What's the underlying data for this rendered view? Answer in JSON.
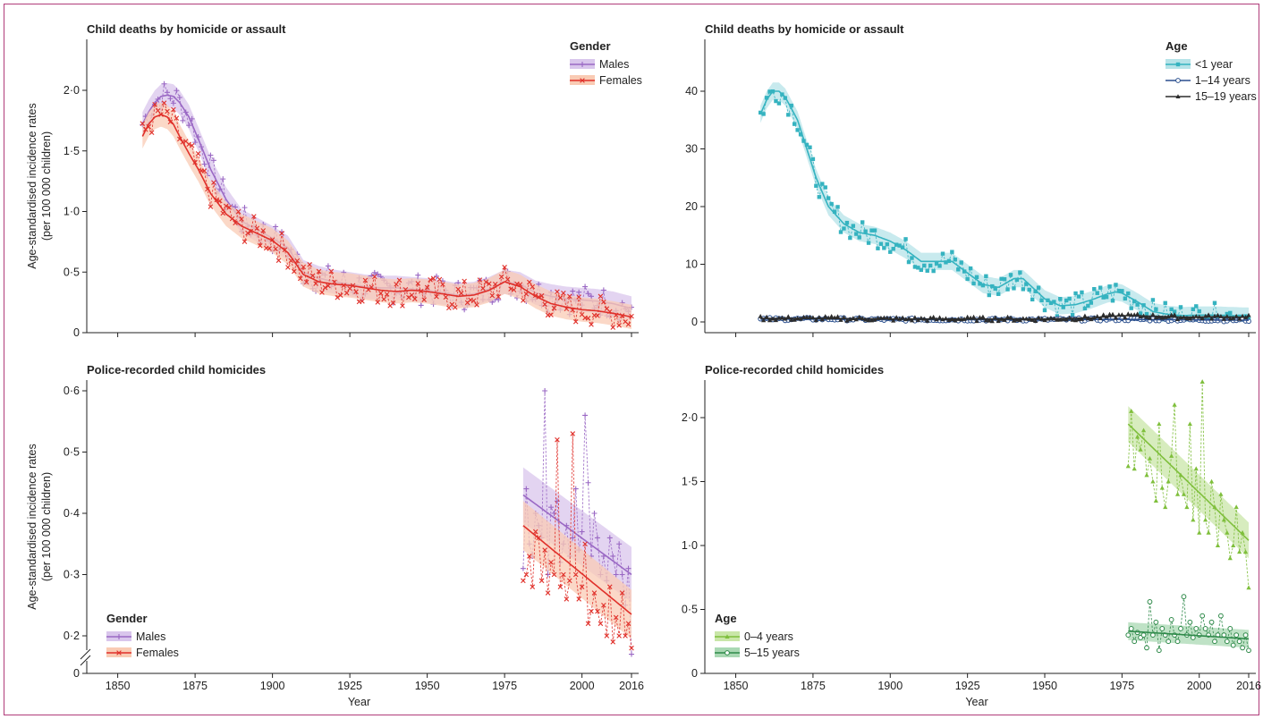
{
  "colors": {
    "males": "#9a68c4",
    "males_band": "#d9c6ec",
    "females": "#e0302a",
    "females_band": "#f9cbb4",
    "under1": "#35b3c0",
    "under1_band": "#b6e3e8",
    "age1_14": "#2a4f8e",
    "age15_19": "#2c2c2c",
    "age0_4": "#7fbf3c",
    "age0_4_band": "#c9e6a8",
    "age5_15": "#2f8a4a",
    "age5_15_band": "#a9d8b3",
    "frame": "#b03c7a"
  },
  "chart_data": [
    {
      "id": "tl",
      "type": "line",
      "title": "Child deaths by homicide or assault",
      "xlabel": "",
      "ylabel": "Age-standardised incidence rates (per 100 000 children)",
      "xlim": [
        1840,
        2016
      ],
      "ylim": [
        0,
        2.35
      ],
      "xticks": [
        1850,
        1875,
        1900,
        1925,
        1950,
        1975,
        2000,
        2016
      ],
      "yticks": [
        0,
        0.5,
        1.0,
        1.5,
        2.0
      ],
      "ytick_labels": [
        "0",
        "0·5",
        "1·0",
        "1·5",
        "2·0"
      ],
      "xtick_labels_shown": false,
      "legend": {
        "title": "Gender",
        "position": "top-right",
        "entries": [
          "Males",
          "Females"
        ]
      },
      "series": [
        {
          "name": "Males",
          "key": "males",
          "marker": "plus",
          "band": true,
          "x": [
            1858,
            1860,
            1862,
            1864,
            1866,
            1868,
            1870,
            1873,
            1876,
            1880,
            1885,
            1890,
            1895,
            1900,
            1905,
            1910,
            1915,
            1920,
            1925,
            1930,
            1935,
            1940,
            1945,
            1950,
            1955,
            1960,
            1965,
            1970,
            1975,
            1980,
            1985,
            1990,
            1995,
            2000,
            2005,
            2010,
            2016
          ],
          "y": [
            1.72,
            1.82,
            1.9,
            1.95,
            1.96,
            1.95,
            1.9,
            1.78,
            1.6,
            1.35,
            1.1,
            0.92,
            0.85,
            0.78,
            0.7,
            0.5,
            0.45,
            0.42,
            0.4,
            0.38,
            0.37,
            0.37,
            0.36,
            0.35,
            0.33,
            0.31,
            0.32,
            0.36,
            0.42,
            0.4,
            0.33,
            0.3,
            0.28,
            0.27,
            0.26,
            0.24,
            0.2
          ],
          "spread": 0.1
        },
        {
          "name": "Females",
          "key": "females",
          "marker": "x",
          "band": true,
          "x": [
            1858,
            1860,
            1862,
            1864,
            1866,
            1868,
            1870,
            1873,
            1876,
            1880,
            1885,
            1890,
            1895,
            1900,
            1905,
            1910,
            1915,
            1920,
            1925,
            1930,
            1935,
            1940,
            1945,
            1950,
            1955,
            1960,
            1965,
            1970,
            1975,
            1980,
            1985,
            1990,
            1995,
            2000,
            2005,
            2010,
            2016
          ],
          "y": [
            1.62,
            1.72,
            1.78,
            1.8,
            1.78,
            1.72,
            1.62,
            1.48,
            1.35,
            1.15,
            0.98,
            0.88,
            0.82,
            0.76,
            0.66,
            0.48,
            0.42,
            0.4,
            0.39,
            0.37,
            0.35,
            0.34,
            0.35,
            0.34,
            0.32,
            0.3,
            0.31,
            0.35,
            0.42,
            0.38,
            0.3,
            0.24,
            0.21,
            0.19,
            0.18,
            0.16,
            0.13
          ],
          "spread": 0.1
        }
      ]
    },
    {
      "id": "tr",
      "type": "line",
      "title": "Child deaths by homicide or assault",
      "xlabel": "",
      "ylabel": "",
      "xlim": [
        1840,
        2016
      ],
      "ylim": [
        0,
        47
      ],
      "xticks": [
        1850,
        1875,
        1900,
        1925,
        1950,
        1975,
        2000,
        2016
      ],
      "yticks": [
        0,
        10,
        20,
        30,
        40
      ],
      "ytick_labels": [
        "0",
        "10",
        "20",
        "30",
        "40"
      ],
      "xtick_labels_shown": false,
      "legend": {
        "title": "Age",
        "position": "top-right",
        "entries": [
          "<1 year",
          "1–14 years",
          "15–19 years"
        ]
      },
      "series": [
        {
          "name": "<1 year",
          "key": "under1",
          "marker": "square",
          "band": true,
          "x": [
            1858,
            1860,
            1862,
            1864,
            1866,
            1868,
            1870,
            1873,
            1876,
            1880,
            1885,
            1890,
            1895,
            1900,
            1905,
            1910,
            1915,
            1920,
            1925,
            1930,
            1935,
            1940,
            1943,
            1945,
            1950,
            1955,
            1960,
            1965,
            1970,
            1973,
            1975,
            1980,
            1985,
            1990,
            1995,
            2000,
            2005,
            2010,
            2016
          ],
          "y": [
            36,
            38.5,
            40,
            40,
            39,
            37,
            35,
            30,
            25,
            20,
            17,
            15.5,
            15,
            14,
            12.5,
            10.5,
            10.5,
            10.5,
            8.5,
            6.5,
            6,
            7.5,
            7.5,
            6.5,
            4,
            2.8,
            3,
            3.8,
            4.8,
            5.2,
            5,
            3.5,
            1.8,
            1.3,
            1.1,
            1.2,
            1.2,
            1.1,
            1.0
          ],
          "spread": 1.5
        },
        {
          "name": "1–14 years",
          "key": "age1_14",
          "marker": "circle",
          "band": false,
          "x": [
            1858,
            1880,
            1900,
            1925,
            1950,
            1975,
            2000,
            2016
          ],
          "y": [
            0.5,
            0.5,
            0.4,
            0.4,
            0.4,
            0.45,
            0.35,
            0.3
          ],
          "spread": 0.2
        },
        {
          "name": "15–19 years",
          "key": "age15_19",
          "marker": "triangle",
          "band": false,
          "x": [
            1858,
            1880,
            1900,
            1925,
            1950,
            1965,
            1975,
            1985,
            1995,
            2005,
            2016
          ],
          "y": [
            0.6,
            0.6,
            0.5,
            0.5,
            0.5,
            0.7,
            1.1,
            1.0,
            0.8,
            0.9,
            0.8
          ],
          "spread": 0.3
        }
      ]
    },
    {
      "id": "bl",
      "type": "line",
      "title": "Police-recorded child homicides",
      "xlabel": "Year",
      "ylabel": "Age-standardised incidence rates (per 100 000 children)",
      "xlim": [
        1840,
        2016
      ],
      "ylim": [
        0.16,
        0.6
      ],
      "ylim_note": "axis break between 0 and 0·2",
      "xticks": [
        1850,
        1875,
        1900,
        1925,
        1950,
        1975,
        2000,
        2016
      ],
      "xtick_labels": [
        "1850",
        "1875",
        "1900",
        "1925",
        "1950",
        "1975",
        "2000",
        "2016"
      ],
      "yticks": [
        0.2,
        0.3,
        0.4,
        0.5,
        0.6
      ],
      "ytick_labels": [
        "0·2",
        "0·3",
        "0·4",
        "0·5",
        "0·6"
      ],
      "zero_label": "0",
      "xtick_labels_shown": true,
      "legend": {
        "title": "Gender",
        "position": "bottom-left",
        "entries": [
          "Males",
          "Females"
        ]
      },
      "series": [
        {
          "name": "Males",
          "key": "males",
          "marker": "plus",
          "band": true,
          "x": [
            1981,
            2016
          ],
          "y": [
            0.43,
            0.3
          ],
          "spread": 0.045,
          "points_x": [
            1981,
            1982,
            1983,
            1984,
            1985,
            1986,
            1987,
            1988,
            1989,
            1990,
            1991,
            1992,
            1993,
            1994,
            1995,
            1996,
            1997,
            1998,
            1999,
            2000,
            2001,
            2002,
            2003,
            2004,
            2005,
            2006,
            2007,
            2008,
            2009,
            2010,
            2011,
            2012,
            2013,
            2014,
            2015,
            2016
          ],
          "points_y": [
            0.31,
            0.44,
            0.35,
            0.33,
            0.4,
            0.38,
            0.36,
            0.6,
            0.3,
            0.41,
            0.4,
            0.42,
            0.32,
            0.35,
            0.38,
            0.33,
            0.36,
            0.44,
            0.34,
            0.37,
            0.56,
            0.45,
            0.33,
            0.4,
            0.36,
            0.3,
            0.33,
            0.29,
            0.36,
            0.33,
            0.3,
            0.35,
            0.3,
            0.25,
            0.31,
            0.17
          ]
        },
        {
          "name": "Females",
          "key": "females",
          "marker": "x",
          "band": true,
          "x": [
            1981,
            2016
          ],
          "y": [
            0.38,
            0.235
          ],
          "spread": 0.04,
          "points_x": [
            1981,
            1982,
            1983,
            1984,
            1985,
            1986,
            1987,
            1988,
            1989,
            1990,
            1991,
            1992,
            1993,
            1994,
            1995,
            1996,
            1997,
            1998,
            1999,
            2000,
            2001,
            2002,
            2003,
            2004,
            2005,
            2006,
            2007,
            2008,
            2009,
            2010,
            2011,
            2012,
            2013,
            2014,
            2015,
            2016
          ],
          "points_y": [
            0.29,
            0.3,
            0.33,
            0.28,
            0.37,
            0.36,
            0.29,
            0.34,
            0.27,
            0.32,
            0.3,
            0.52,
            0.28,
            0.3,
            0.26,
            0.29,
            0.53,
            0.3,
            0.26,
            0.28,
            0.35,
            0.22,
            0.24,
            0.27,
            0.24,
            0.22,
            0.25,
            0.2,
            0.28,
            0.19,
            0.23,
            0.2,
            0.27,
            0.2,
            0.22,
            0.18
          ]
        }
      ]
    },
    {
      "id": "br",
      "type": "line",
      "title": "Police-recorded child homicides",
      "xlabel": "Year",
      "ylabel": "",
      "xlim": [
        1840,
        2016
      ],
      "ylim": [
        0,
        2.3
      ],
      "xticks": [
        1850,
        1875,
        1900,
        1925,
        1950,
        1975,
        2000,
        2016
      ],
      "xtick_labels": [
        "1850",
        "1875",
        "1900",
        "1925",
        "1950",
        "1975",
        "2000",
        "2016"
      ],
      "yticks": [
        0,
        0.5,
        1.0,
        1.5,
        2.0
      ],
      "ytick_labels": [
        "0",
        "0·5",
        "1·0",
        "1·5",
        "2·0"
      ],
      "xtick_labels_shown": true,
      "legend": {
        "title": "Age",
        "position": "bottom-left",
        "entries": [
          "0–4 years",
          "5–15 years"
        ]
      },
      "series": [
        {
          "name": "0–4 years",
          "key": "age0_4",
          "marker": "triangle",
          "band": true,
          "x": [
            1977,
            2016
          ],
          "y": [
            1.95,
            1.04
          ],
          "spread": 0.14,
          "points_x": [
            1977,
            1978,
            1979,
            1980,
            1981,
            1982,
            1983,
            1984,
            1985,
            1986,
            1987,
            1988,
            1989,
            1990,
            1991,
            1992,
            1993,
            1994,
            1995,
            1996,
            1997,
            1998,
            1999,
            2000,
            2001,
            2002,
            2003,
            2004,
            2005,
            2006,
            2007,
            2008,
            2009,
            2010,
            2011,
            2012,
            2013,
            2014,
            2015,
            2016
          ],
          "points_y": [
            1.62,
            2.05,
            1.6,
            1.85,
            1.75,
            1.9,
            1.55,
            1.68,
            1.5,
            1.35,
            1.95,
            1.45,
            1.3,
            1.5,
            1.7,
            2.1,
            1.4,
            1.55,
            1.4,
            1.3,
            1.95,
            1.2,
            1.6,
            1.1,
            2.28,
            1.2,
            1.1,
            1.5,
            1.3,
            1.0,
            1.4,
            1.2,
            1.1,
            0.9,
            1.0,
            1.3,
            0.95,
            1.1,
            0.95,
            0.67
          ]
        },
        {
          "name": "5–15 years",
          "key": "age5_15",
          "marker": "circle",
          "band": true,
          "x": [
            1977,
            2016
          ],
          "y": [
            0.33,
            0.27
          ],
          "spread": 0.07,
          "points_x": [
            1977,
            1978,
            1979,
            1980,
            1981,
            1982,
            1983,
            1984,
            1985,
            1986,
            1987,
            1988,
            1989,
            1990,
            1991,
            1992,
            1993,
            1994,
            1995,
            1996,
            1997,
            1998,
            1999,
            2000,
            2001,
            2002,
            2003,
            2004,
            2005,
            2006,
            2007,
            2008,
            2009,
            2010,
            2011,
            2012,
            2013,
            2014,
            2015,
            2016
          ],
          "points_y": [
            0.3,
            0.35,
            0.25,
            0.32,
            0.28,
            0.3,
            0.2,
            0.56,
            0.3,
            0.4,
            0.18,
            0.35,
            0.3,
            0.25,
            0.42,
            0.3,
            0.25,
            0.35,
            0.6,
            0.3,
            0.4,
            0.28,
            0.35,
            0.3,
            0.45,
            0.35,
            0.3,
            0.4,
            0.25,
            0.3,
            0.45,
            0.3,
            0.25,
            0.35,
            0.22,
            0.3,
            0.25,
            0.2,
            0.3,
            0.18
          ]
        }
      ]
    }
  ]
}
